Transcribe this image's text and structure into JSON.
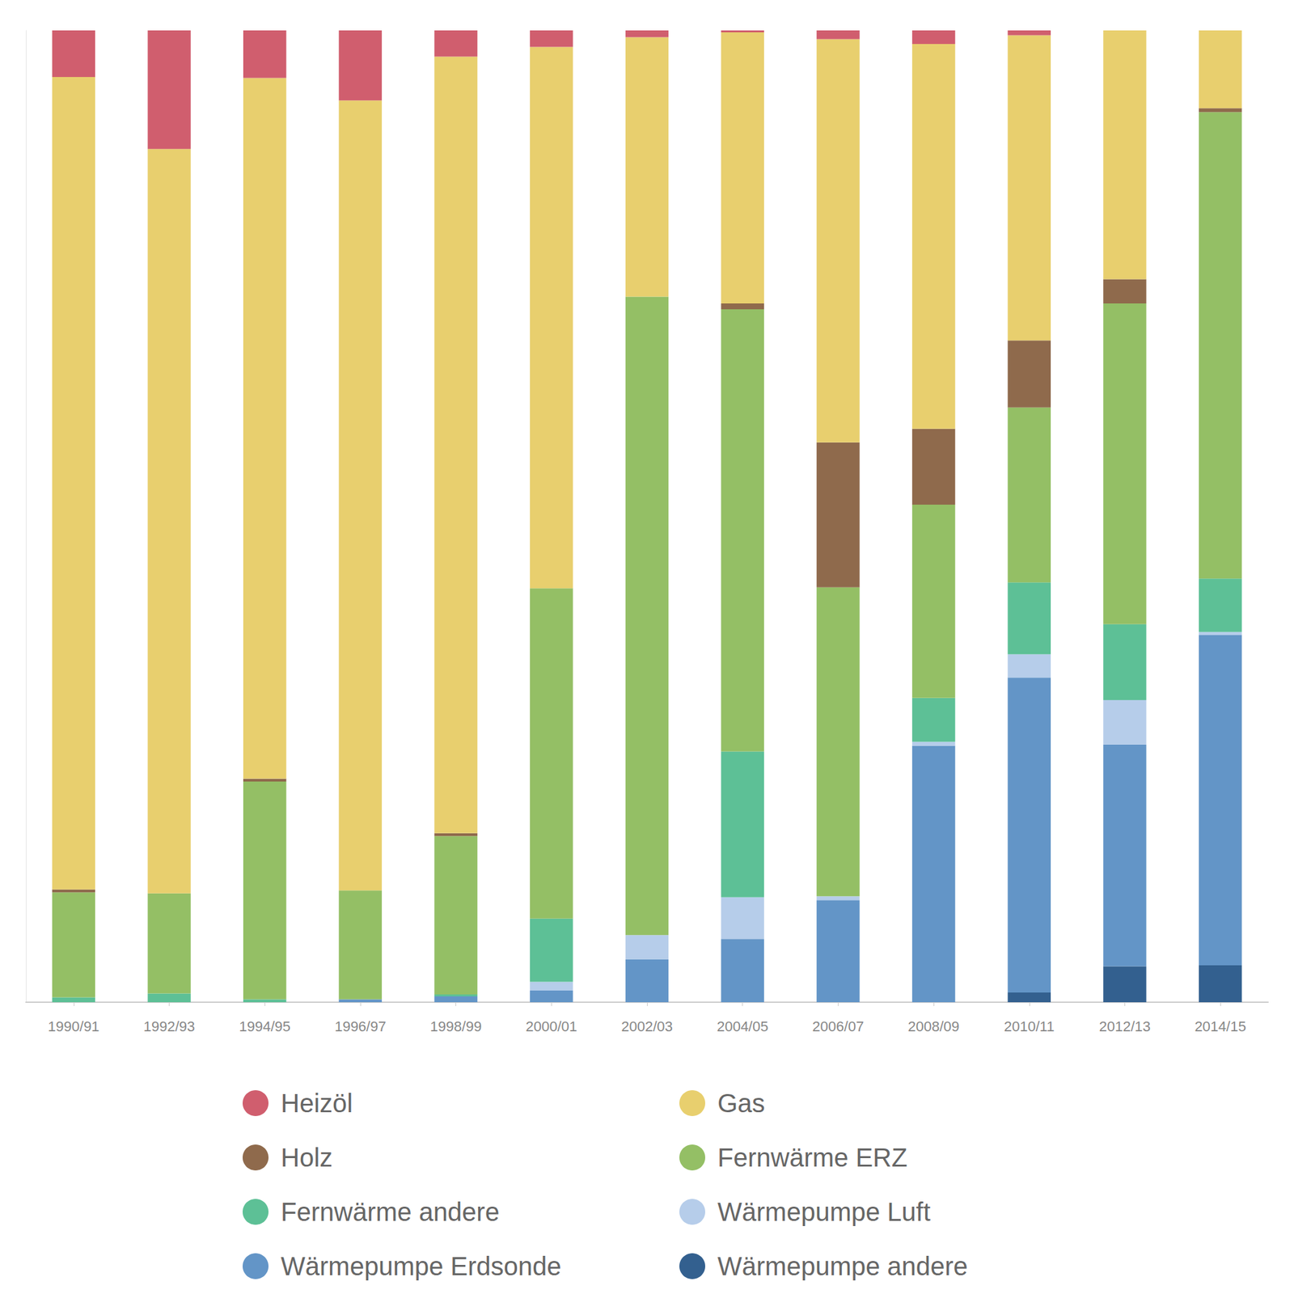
{
  "chart_data": {
    "type": "bar",
    "stacked": true,
    "categories": [
      "1990/91",
      "1992/93",
      "1994/95",
      "1996/97",
      "1998/99",
      "2000/01",
      "2002/03",
      "2004/05",
      "2006/07",
      "2008/09",
      "2010/11",
      "2012/13",
      "2014/15"
    ],
    "ylim": [
      0,
      100
    ],
    "tick_labels": "x",
    "grid": false,
    "legend": "bottom",
    "series": [
      {
        "name": "Heizöl",
        "color": "#d05e6e",
        "values": [
          4.8,
          12.2,
          4.9,
          7.2,
          2.7,
          1.7,
          0.7,
          0.2,
          0.9,
          1.4,
          0.5,
          0,
          0
        ]
      },
      {
        "name": "Gas",
        "color": "#e8cf6e",
        "values": [
          83.6,
          76.6,
          72.1,
          81.3,
          79.9,
          55.7,
          26.7,
          27.9,
          41.5,
          39.6,
          31.4,
          25.6,
          8.0
        ]
      },
      {
        "name": "Holz",
        "color": "#8f6a4c",
        "values": [
          0.3,
          0,
          0.3,
          0,
          0.3,
          0,
          0,
          0.6,
          14.9,
          7.8,
          6.9,
          2.5,
          0.4
        ]
      },
      {
        "name": "Fernwärme ERZ",
        "color": "#94bf65",
        "values": [
          10.8,
          10.3,
          22.4,
          11.2,
          16.3,
          34.0,
          65.7,
          45.5,
          31.8,
          19.9,
          18.0,
          33.0,
          48.0
        ]
      },
      {
        "name": "Fernwärme andere",
        "color": "#5dc096",
        "values": [
          0.5,
          0.9,
          0.3,
          0,
          0.2,
          6.5,
          0,
          15.0,
          0,
          4.5,
          7.4,
          7.8,
          5.5
        ]
      },
      {
        "name": "Wärmepumpe Luft",
        "color": "#b6cdea",
        "values": [
          0,
          0,
          0,
          0,
          0,
          0.9,
          2.5,
          4.3,
          0.4,
          0.4,
          2.4,
          4.6,
          0.3
        ]
      },
      {
        "name": "Wärmepumpe Erdsonde",
        "color": "#6395c7",
        "values": [
          0,
          0,
          0,
          0.3,
          0.6,
          1.2,
          4.4,
          6.5,
          10.5,
          26.4,
          32.4,
          22.8,
          34.0
        ]
      },
      {
        "name": "Wärmepumpe andere",
        "color": "#33608f",
        "values": [
          0,
          0,
          0,
          0,
          0,
          0,
          0,
          0,
          0,
          0,
          1.0,
          3.7,
          3.8
        ]
      }
    ]
  }
}
